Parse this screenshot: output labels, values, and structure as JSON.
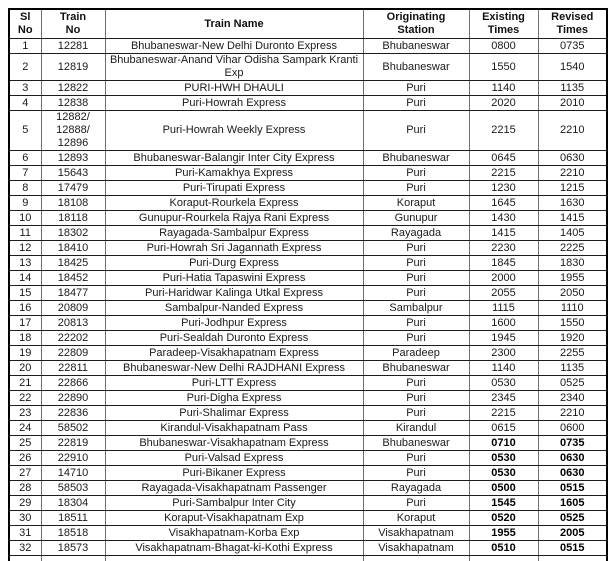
{
  "colors": {
    "text": "#1a1a1a",
    "outer_border": "#000000",
    "row_border": "#1c1c1c",
    "column_border": "#6e6e6e",
    "background": "#ffffff"
  },
  "table": {
    "headers": [
      "Sl\nNo",
      "Train\nNo",
      "Train Name",
      "Originating\nStation",
      "Existing\nTimes",
      "Revised\nTimes"
    ],
    "rows": [
      {
        "sl": "1",
        "train_no": "12281",
        "name": "Bhubaneswar-New Delhi Duronto Express",
        "station": "Bhubaneswar",
        "existing": "0800",
        "revised": "0735",
        "bold_times": false
      },
      {
        "sl": "2",
        "train_no": "12819",
        "name": "Bhubaneswar-Anand Vihar Odisha Sampark Kranti Exp",
        "station": "Bhubaneswar",
        "existing": "1550",
        "revised": "1540",
        "bold_times": false
      },
      {
        "sl": "3",
        "train_no": "12822",
        "name": "PURI-HWH DHAULI",
        "station": "Puri",
        "existing": "1140",
        "revised": "1135",
        "bold_times": false
      },
      {
        "sl": "4",
        "train_no": "12838",
        "name": "Puri-Howrah Express",
        "station": "Puri",
        "existing": "2020",
        "revised": "2010",
        "bold_times": false
      },
      {
        "sl": "5",
        "train_no": "12882/\n12888/\n12896",
        "name": "Puri-Howrah Weekly Express",
        "station": "Puri",
        "existing": "2215",
        "revised": "2210",
        "bold_times": false
      },
      {
        "sl": "6",
        "train_no": "12893",
        "name": "Bhubaneswar-Balangir Inter City Express",
        "station": "Bhubaneswar",
        "existing": "0645",
        "revised": "0630",
        "bold_times": false
      },
      {
        "sl": "7",
        "train_no": "15643",
        "name": "Puri-Kamakhya Express",
        "station": "Puri",
        "existing": "2215",
        "revised": "2210",
        "bold_times": false
      },
      {
        "sl": "8",
        "train_no": "17479",
        "name": "Puri-Tirupati Express",
        "station": "Puri",
        "existing": "1230",
        "revised": "1215",
        "bold_times": false
      },
      {
        "sl": "9",
        "train_no": "18108",
        "name": "Koraput-Rourkela Express",
        "station": "Koraput",
        "existing": "1645",
        "revised": "1630",
        "bold_times": false
      },
      {
        "sl": "10",
        "train_no": "18118",
        "name": "Gunupur-Rourkela Rajya Rani Express",
        "station": "Gunupur",
        "existing": "1430",
        "revised": "1415",
        "bold_times": false
      },
      {
        "sl": "11",
        "train_no": "18302",
        "name": "Rayagada-Sambalpur Express",
        "station": "Rayagada",
        "existing": "1415",
        "revised": "1405",
        "bold_times": false
      },
      {
        "sl": "12",
        "train_no": "18410",
        "name": "Puri-Howrah Sri Jagannath Express",
        "station": "Puri",
        "existing": "2230",
        "revised": "2225",
        "bold_times": false
      },
      {
        "sl": "13",
        "train_no": "18425",
        "name": "Puri-Durg Express",
        "station": "Puri",
        "existing": "1845",
        "revised": "1830",
        "bold_times": false
      },
      {
        "sl": "14",
        "train_no": "18452",
        "name": "Puri-Hatia Tapaswini Express",
        "station": "Puri",
        "existing": "2000",
        "revised": "1955",
        "bold_times": false
      },
      {
        "sl": "15",
        "train_no": "18477",
        "name": "Puri-Haridwar Kalinga Utkal Express",
        "station": "Puri",
        "existing": "2055",
        "revised": "2050",
        "bold_times": false
      },
      {
        "sl": "16",
        "train_no": "20809",
        "name": "Sambalpur-Nanded Express",
        "station": "Sambalpur",
        "existing": "1115",
        "revised": "1110",
        "bold_times": false
      },
      {
        "sl": "17",
        "train_no": "20813",
        "name": "Puri-Jodhpur Express",
        "station": "Puri",
        "existing": "1600",
        "revised": "1550",
        "bold_times": false
      },
      {
        "sl": "18",
        "train_no": "22202",
        "name": "Puri-Sealdah Duronto Express",
        "station": "Puri",
        "existing": "1945",
        "revised": "1920",
        "bold_times": false
      },
      {
        "sl": "19",
        "train_no": "22809",
        "name": "Paradeep-Visakhapatnam Express",
        "station": "Paradeep",
        "existing": "2300",
        "revised": "2255",
        "bold_times": false
      },
      {
        "sl": "20",
        "train_no": "22811",
        "name": "Bhubaneswar-New Delhi RAJDHANI Express",
        "station": "Bhubaneswar",
        "existing": "1140",
        "revised": "1135",
        "bold_times": false
      },
      {
        "sl": "21",
        "train_no": "22866",
        "name": "Puri-LTT Express",
        "station": "Puri",
        "existing": "0530",
        "revised": "0525",
        "bold_times": false
      },
      {
        "sl": "22",
        "train_no": "22890",
        "name": "Puri-Digha Express",
        "station": "Puri",
        "existing": "2345",
        "revised": "2340",
        "bold_times": false
      },
      {
        "sl": "23",
        "train_no": "22836",
        "name": "Puri-Shalimar Express",
        "station": "Puri",
        "existing": "2215",
        "revised": "2210",
        "bold_times": false
      },
      {
        "sl": "24",
        "train_no": "58502",
        "name": "Kirandul-Visakhapatnam Pass",
        "station": "Kirandul",
        "existing": "0615",
        "revised": "0600",
        "bold_times": false
      },
      {
        "sl": "25",
        "train_no": "22819",
        "name": "Bhubaneswar-Visakhapatnam Express",
        "station": "Bhubaneswar",
        "existing": "0710",
        "revised": "0735",
        "bold_times": true
      },
      {
        "sl": "26",
        "train_no": "22910",
        "name": "Puri-Valsad Express",
        "station": "Puri",
        "existing": "0530",
        "revised": "0630",
        "bold_times": true
      },
      {
        "sl": "27",
        "train_no": "14710",
        "name": "Puri-Bikaner Express",
        "station": "Puri",
        "existing": "0530",
        "revised": "0630",
        "bold_times": true
      },
      {
        "sl": "28",
        "train_no": "58503",
        "name": "Rayagada-Visakhapatnam Passenger",
        "station": "Rayagada",
        "existing": "0500",
        "revised": "0515",
        "bold_times": true
      },
      {
        "sl": "29",
        "train_no": "18304",
        "name": "Puri-Sambalpur Inter City",
        "station": "Puri",
        "existing": "1545",
        "revised": "1605",
        "bold_times": true
      },
      {
        "sl": "30",
        "train_no": "18511",
        "name": "Koraput-Visakhapatnam Exp",
        "station": "Koraput",
        "existing": "0520",
        "revised": "0525",
        "bold_times": true
      },
      {
        "sl": "31",
        "train_no": "18518",
        "name": "Visakhapatnam-Korba Exp",
        "station": "Visakhapatnam",
        "existing": "1955",
        "revised": "2005",
        "bold_times": true
      },
      {
        "sl": "32",
        "train_no": "18573",
        "name": "Visakhapatnam-Bhagat-ki-Kothi Express",
        "station": "Visakhapatnam",
        "existing": "0510",
        "revised": "0515",
        "bold_times": true
      }
    ]
  }
}
